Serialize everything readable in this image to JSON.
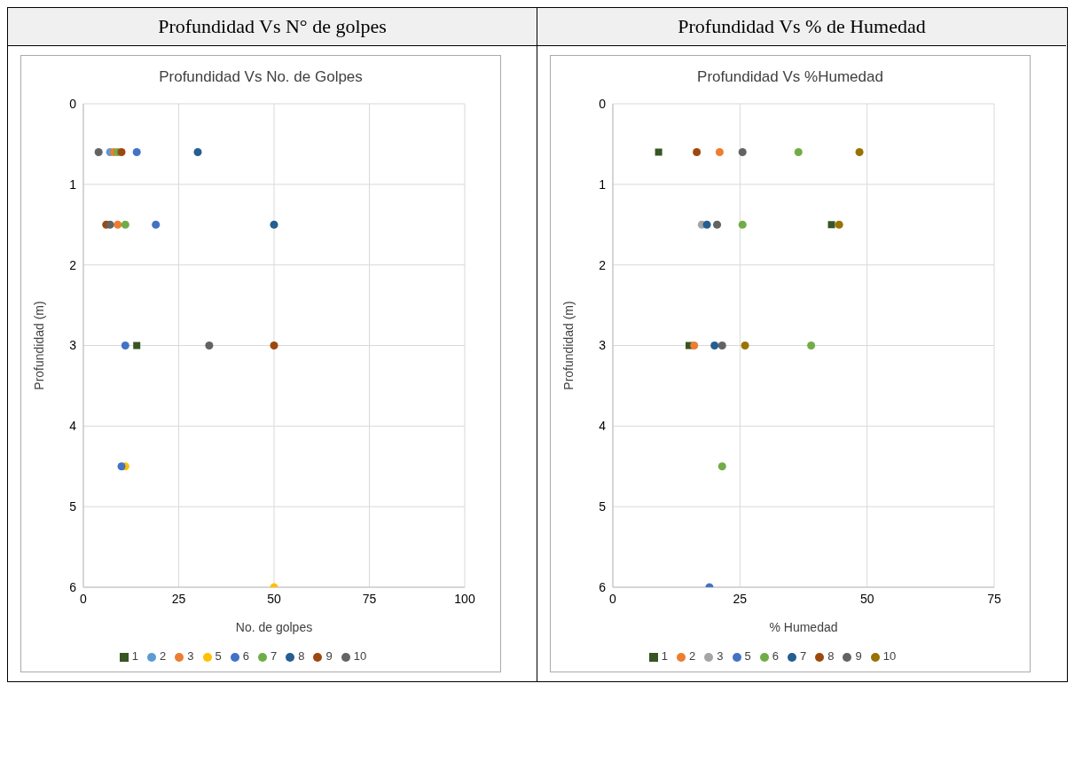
{
  "chart_data": [
    {
      "type": "scatter",
      "subtitle": "Profundidad Vs N° de golpes",
      "title": "Profundidad Vs No. de Golpes",
      "xlabel": "No. de golpes",
      "ylabel": "Profundidad (m)",
      "xlim": [
        0,
        100
      ],
      "xticks": [
        0,
        25,
        50,
        75,
        100
      ],
      "ylim": [
        6,
        0
      ],
      "yticks": [
        0,
        1,
        2,
        3,
        4,
        5,
        6
      ],
      "grid": true,
      "legend": "bottom",
      "marker": "circle",
      "series": [
        {
          "name": "1",
          "color": "#375623",
          "marker": "square",
          "x": [
            14
          ],
          "values": [
            3
          ]
        },
        {
          "name": "2",
          "color": "#5b9bd5",
          "x": [
            7
          ],
          "values": [
            0.6
          ]
        },
        {
          "name": "3",
          "color": "#ed7d31",
          "x": [
            8,
            9
          ],
          "values": [
            0.6,
            1.5
          ]
        },
        {
          "name": "5",
          "color": "#ffc000",
          "x": [
            11,
            50
          ],
          "values": [
            4.5,
            6
          ]
        },
        {
          "name": "6",
          "color": "#4472c4",
          "x": [
            14,
            19,
            11,
            10
          ],
          "values": [
            0.6,
            1.5,
            3,
            4.5
          ]
        },
        {
          "name": "7",
          "color": "#70ad47",
          "x": [
            9,
            11
          ],
          "values": [
            0.6,
            1.5
          ]
        },
        {
          "name": "8",
          "color": "#255e91",
          "x": [
            30,
            50
          ],
          "values": [
            0.6,
            1.5
          ]
        },
        {
          "name": "9",
          "color": "#9e480e",
          "x": [
            10,
            6,
            50
          ],
          "values": [
            0.6,
            1.5,
            3
          ]
        },
        {
          "name": "10",
          "color": "#636363",
          "x": [
            4,
            7,
            33
          ],
          "values": [
            0.6,
            1.5,
            3
          ]
        }
      ]
    },
    {
      "type": "scatter",
      "subtitle": "Profundidad Vs % de Humedad",
      "title": "Profundidad Vs %Humedad",
      "xlabel": "% Humedad",
      "ylabel": "Profundidad (m)",
      "xlim": [
        0,
        75
      ],
      "xticks": [
        0,
        25,
        50,
        75
      ],
      "ylim": [
        6,
        0
      ],
      "yticks": [
        0,
        1,
        2,
        3,
        4,
        5,
        6
      ],
      "grid": true,
      "legend": "bottom",
      "marker": "circle",
      "series": [
        {
          "name": "1",
          "color": "#375623",
          "marker": "square",
          "x": [
            9,
            43,
            15
          ],
          "values": [
            0.6,
            1.5,
            3
          ]
        },
        {
          "name": "2",
          "color": "#ed7d31",
          "x": [
            21,
            16
          ],
          "values": [
            0.6,
            3
          ]
        },
        {
          "name": "3",
          "color": "#a5a5a5",
          "x": [
            17.5
          ],
          "values": [
            1.5
          ]
        },
        {
          "name": "5",
          "color": "#4472c4",
          "x": [
            19
          ],
          "values": [
            6
          ]
        },
        {
          "name": "6",
          "color": "#70ad47",
          "x": [
            36.5,
            25.5,
            39,
            21.5
          ],
          "values": [
            0.6,
            1.5,
            3,
            4.5
          ]
        },
        {
          "name": "7",
          "color": "#255e91",
          "x": [
            18.5,
            20
          ],
          "values": [
            1.5,
            3
          ]
        },
        {
          "name": "8",
          "color": "#9e480e",
          "x": [
            16.5
          ],
          "values": [
            0.6
          ]
        },
        {
          "name": "9",
          "color": "#636363",
          "x": [
            25.5,
            20.5,
            21.5
          ],
          "values": [
            0.6,
            1.5,
            3
          ]
        },
        {
          "name": "10",
          "color": "#997300",
          "x": [
            48.5,
            44.5,
            26
          ],
          "values": [
            0.6,
            1.5,
            3
          ]
        }
      ]
    }
  ]
}
